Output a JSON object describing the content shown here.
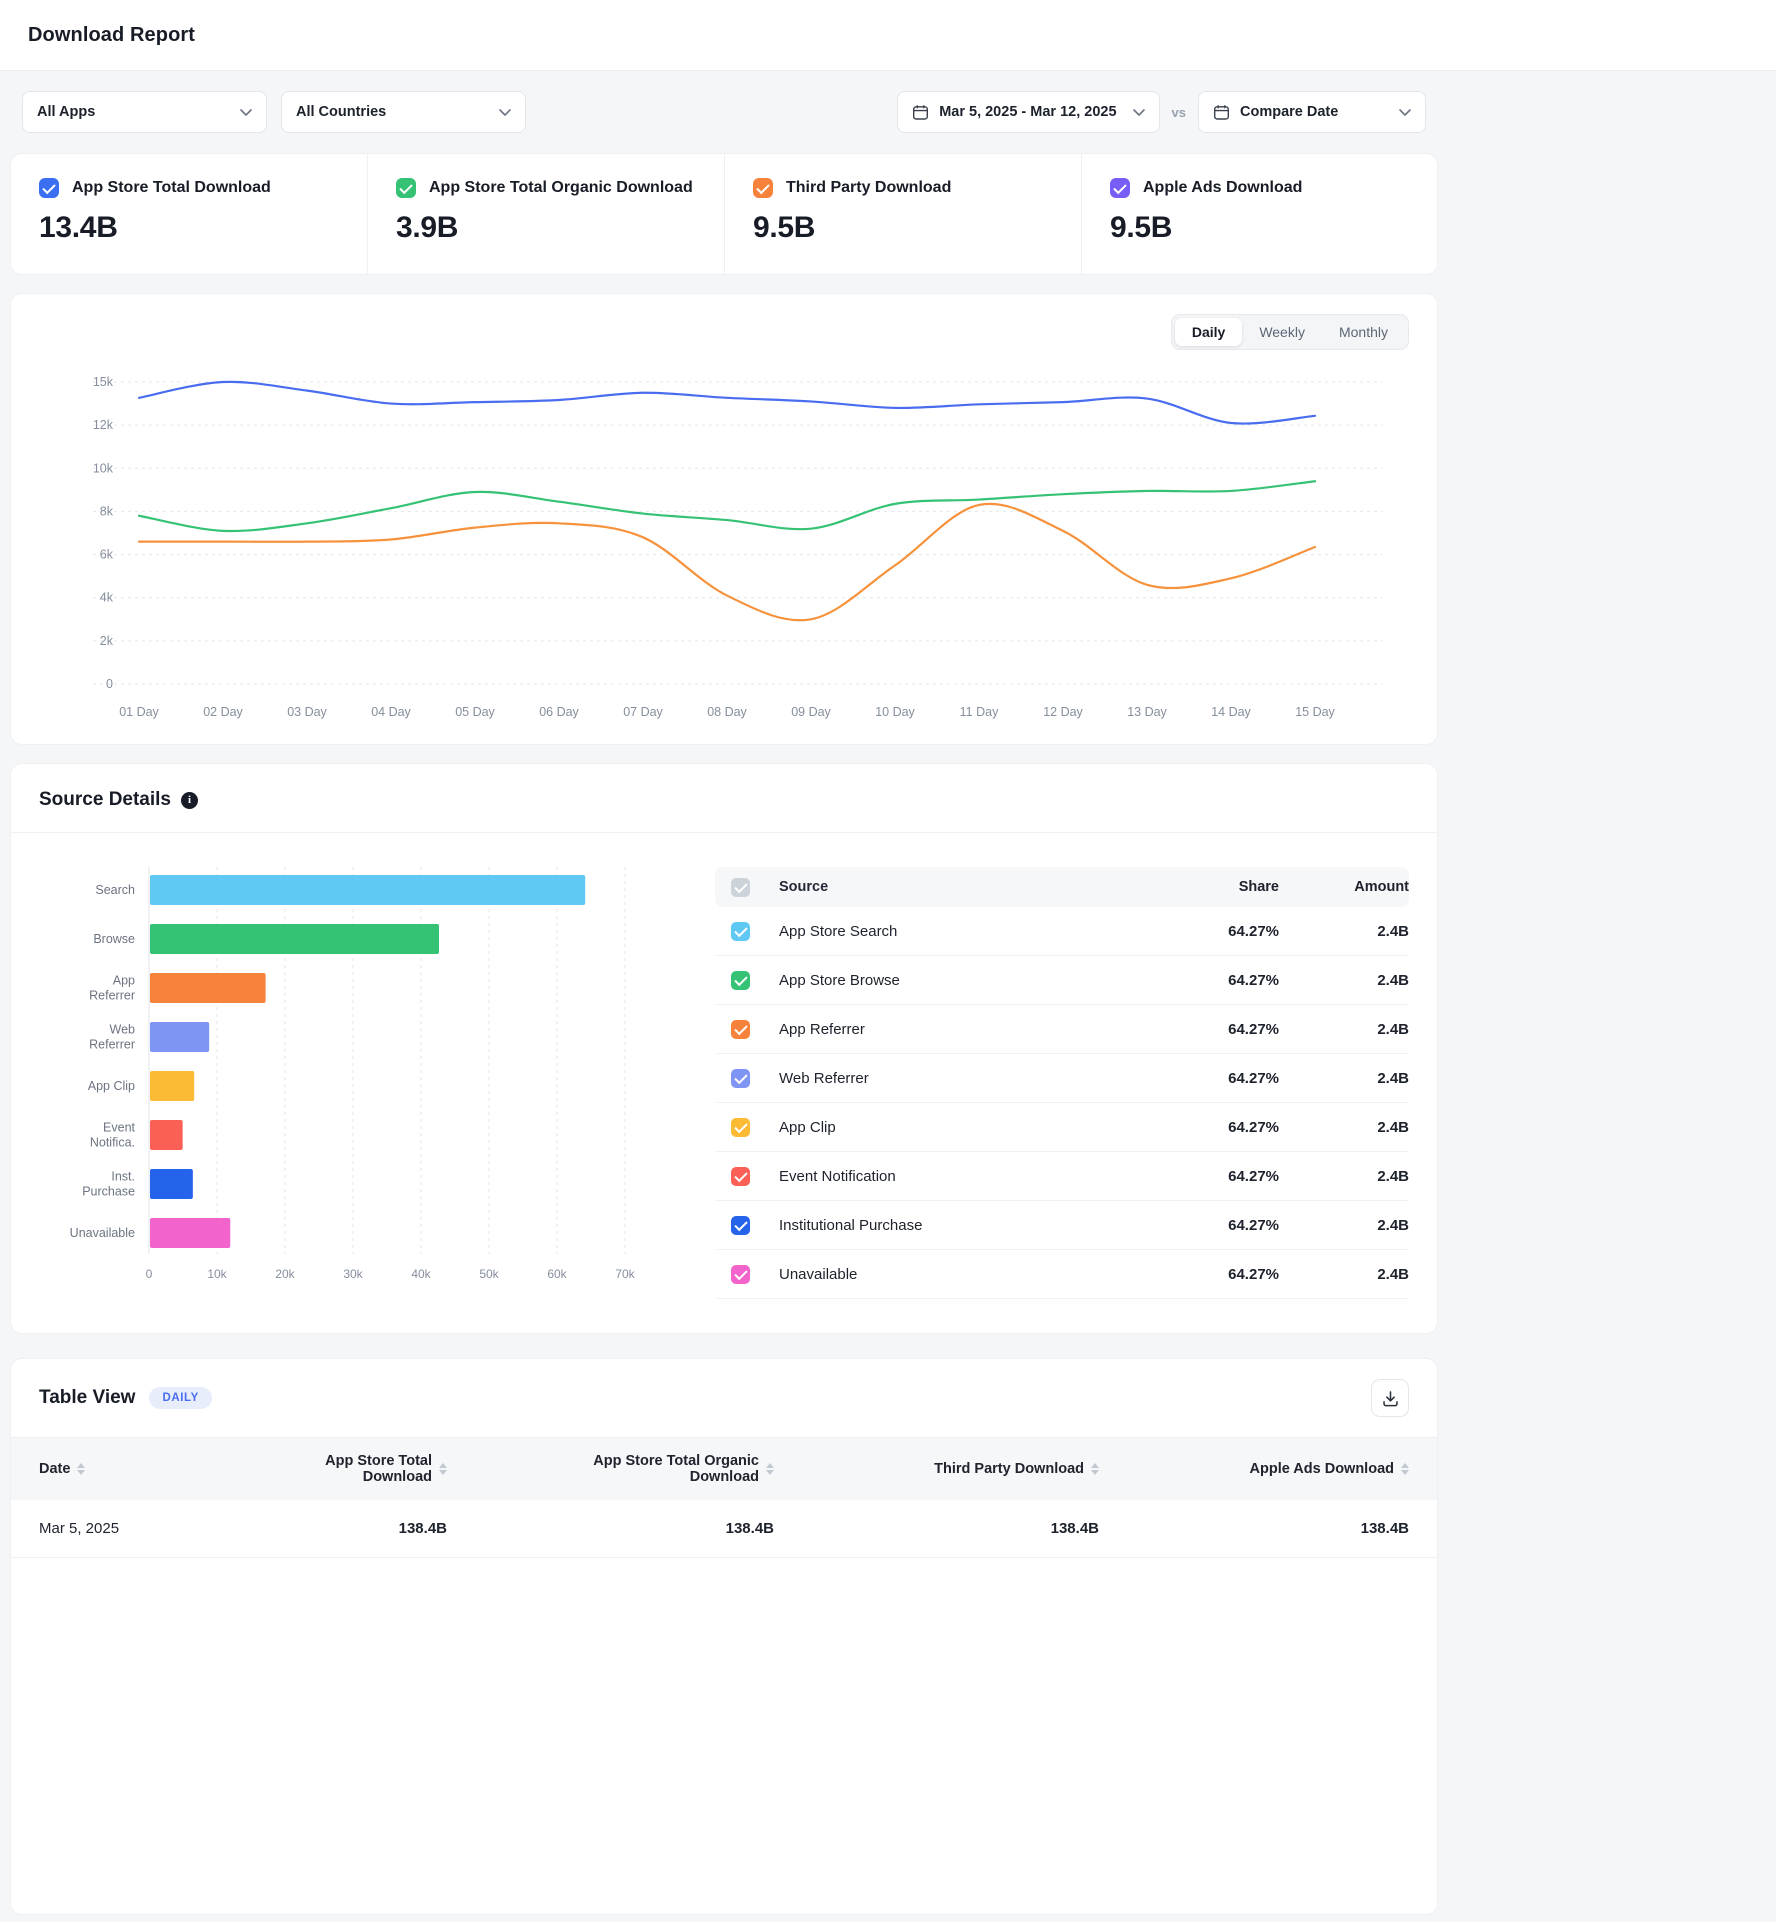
{
  "header": {
    "title": "Download Report"
  },
  "filters": {
    "apps_value": "All Apps",
    "countries_value": "All Countries",
    "date_range_value": "Mar 5, 2025 - Mar 12, 2025",
    "vs_label": "vs",
    "compare_value": "Compare Date"
  },
  "stat_cards": [
    {
      "label": "App Store Total Download",
      "value": "13.4B",
      "color": "#3a6ff2"
    },
    {
      "label": "App Store Total Organic Download",
      "value": "3.9B",
      "color": "#35c274"
    },
    {
      "label": "Third Party Download",
      "value": "9.5B",
      "color": "#f6823b"
    },
    {
      "label": "Apple Ads Download",
      "value": "9.5B",
      "color": "#7a5cf6"
    }
  ],
  "trend": {
    "tabs": [
      "Daily",
      "Weekly",
      "Monthly"
    ],
    "active_tab": "Daily"
  },
  "chart_data": [
    {
      "type": "line",
      "x": [
        "01 Day",
        "02 Day",
        "03 Day",
        "04 Day",
        "05 Day",
        "06 Day",
        "07 Day",
        "08 Day",
        "09 Day",
        "10 Day",
        "11 Day",
        "12 Day",
        "13 Day",
        "14 Day",
        "15 Day"
      ],
      "ytick_values": [
        0,
        2000,
        4000,
        6000,
        8000,
        10000,
        12000,
        15000
      ],
      "ytick_labels": [
        "0",
        "2k",
        "4k",
        "6k",
        "8k",
        "10k",
        "12k",
        "15k"
      ],
      "grid": true,
      "series": [
        {
          "name": "App Store Total Download",
          "color": "#4a6df0",
          "values": [
            13900,
            15000,
            14400,
            13500,
            13600,
            13750,
            14250,
            13900,
            13650,
            13200,
            13450,
            13600,
            13850,
            12150,
            12650
          ]
        },
        {
          "name": "App Store Total Organic Download",
          "color": "#35c274",
          "values": [
            7800,
            7100,
            7450,
            8150,
            8900,
            8450,
            7900,
            7600,
            7200,
            8350,
            8550,
            8800,
            8950,
            8950,
            9400
          ]
        },
        {
          "name": "Third Party Download",
          "color": "#f6923c",
          "values": [
            6600,
            6600,
            6600,
            6700,
            7250,
            7450,
            6800,
            4100,
            3000,
            5500,
            8300,
            7100,
            4600,
            4900,
            6350
          ]
        }
      ]
    },
    {
      "type": "bar",
      "orientation": "horizontal",
      "categories": [
        "Search",
        "Browse",
        "App Referrer",
        "Web Referrer",
        "App Clip",
        "Event Notifica.",
        "Inst. Purchase",
        "Unavailable"
      ],
      "values": [
        64000,
        42500,
        17000,
        8700,
        6500,
        4800,
        6300,
        11800
      ],
      "colors": [
        "#5fc8f3",
        "#35c274",
        "#f6823b",
        "#7e95f4",
        "#fbbb35",
        "#fa6055",
        "#2563eb",
        "#f263cb"
      ],
      "xlim": [
        0,
        70000
      ],
      "xtick_values": [
        0,
        10000,
        20000,
        30000,
        40000,
        50000,
        60000,
        70000
      ],
      "xtick_labels": [
        "0",
        "10k",
        "20k",
        "30k",
        "40k",
        "50k",
        "60k",
        "70k"
      ],
      "grid": true
    }
  ],
  "source_details": {
    "title": "Source Details",
    "columns": {
      "source": "Source",
      "share": "Share",
      "amount": "Amount"
    },
    "rows": [
      {
        "source": "App Store Search",
        "share": "64.27%",
        "amount": "2.4B",
        "color": "#5fc8f3"
      },
      {
        "source": "App Store Browse",
        "share": "64.27%",
        "amount": "2.4B",
        "color": "#35c274"
      },
      {
        "source": "App Referrer",
        "share": "64.27%",
        "amount": "2.4B",
        "color": "#f6823b"
      },
      {
        "source": "Web Referrer",
        "share": "64.27%",
        "amount": "2.4B",
        "color": "#7e95f4"
      },
      {
        "source": "App Clip",
        "share": "64.27%",
        "amount": "2.4B",
        "color": "#fbbb35"
      },
      {
        "source": "Event Notification",
        "share": "64.27%",
        "amount": "2.4B",
        "color": "#fa6055"
      },
      {
        "source": "Institutional Purchase",
        "share": "64.27%",
        "amount": "2.4B",
        "color": "#2563eb"
      },
      {
        "source": "Unavailable",
        "share": "64.27%",
        "amount": "2.4B",
        "color": "#f263cb"
      }
    ]
  },
  "table_view": {
    "title": "Table View",
    "badge": "DAILY",
    "columns": [
      "Date",
      "App Store Total Download",
      "App Store Total Organic Download",
      "Third Party Download",
      "Apple Ads Download"
    ],
    "rows": [
      [
        "Mar 5, 2025",
        "138.4B",
        "138.4B",
        "138.4B",
        "138.4B"
      ]
    ]
  }
}
